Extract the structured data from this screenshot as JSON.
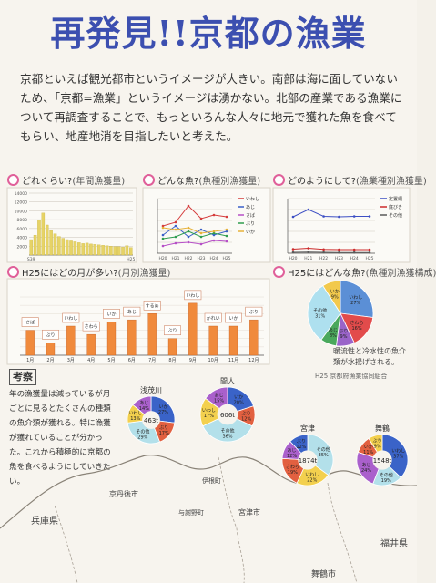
{
  "title": "再発見!!京都の漁業",
  "intro": "京都といえば観光都市というイメージが大きい。南部は海に面していないため、「京都=漁業」というイメージは湧かない。北部の産業である漁業について再調査することで、もっといろんな人々に地元で獲れた魚を食べてもらい、地産地消を目指したいと考えた。",
  "sections": {
    "s1": {
      "label": "どれくらい?",
      "paren": "(年間漁獲量)"
    },
    "s2": {
      "label": "どんな魚?",
      "paren": "(魚種別漁獲量)"
    },
    "s3": {
      "label": "どのようにして?",
      "paren": "(漁業種別漁獲量)"
    },
    "s4": {
      "label": "H25にはどの月が多い?",
      "paren": "(月別漁獲量)"
    },
    "s5": {
      "label": "H25にはどんな魚?",
      "paren": "(魚種別漁獲構成)"
    }
  },
  "chart_data": [
    {
      "type": "bar",
      "title": "どれくらい?(年間漁獲量)",
      "yticks": [
        "14000",
        "12000",
        "10000",
        "8000",
        "6000",
        "4000",
        "2000"
      ],
      "ylim": [
        0,
        14000
      ],
      "categories": [
        "S39",
        "",
        "",
        "",
        "",
        "",
        "",
        "",
        "",
        "",
        "",
        "",
        "",
        "",
        "",
        "",
        "",
        "",
        "",
        "",
        "",
        "",
        "",
        "",
        "",
        "H25"
      ],
      "values": [
        3500,
        4500,
        8000,
        9500,
        6800,
        5500,
        4800,
        4200,
        3800,
        3500,
        3200,
        3000,
        2800,
        2600,
        2700,
        2500,
        2400,
        2300,
        2200,
        2100,
        2000,
        1900,
        1900,
        1800,
        2100,
        1700
      ],
      "color": "#e6d366"
    },
    {
      "type": "line",
      "title": "どんな魚?(魚種別漁獲量)",
      "categories": [
        "H20",
        "H21",
        "H22",
        "H23",
        "H24",
        "H25"
      ],
      "legend": [
        "いわし",
        "あじ",
        "さば",
        "ぶり",
        "いか"
      ],
      "series": [
        {
          "name": "いわし",
          "color": "#d53c3c",
          "values": [
            1500,
            1700,
            2600,
            1900,
            2100,
            2000
          ]
        },
        {
          "name": "あじ",
          "color": "#3a60c8",
          "values": [
            1000,
            1500,
            900,
            1300,
            1000,
            1200
          ]
        },
        {
          "name": "さば",
          "color": "#b64fc7",
          "values": [
            400,
            550,
            600,
            500,
            700,
            650
          ]
        },
        {
          "name": "ぶり",
          "color": "#2f9c4f",
          "values": [
            800,
            900,
            1200,
            900,
            1100,
            950
          ]
        },
        {
          "name": "いか",
          "color": "#e6b23a",
          "values": [
            1400,
            1300,
            1400,
            1100,
            1200,
            1300
          ]
        }
      ],
      "ylim": [
        0,
        3000
      ]
    },
    {
      "type": "line",
      "title": "どのようにして?(漁業種別漁獲量)",
      "categories": [
        "H20",
        "H21",
        "H22",
        "H23",
        "H24",
        "H25"
      ],
      "legend": [
        "定置網",
        "底びき",
        "その他"
      ],
      "series": [
        {
          "name": "定置網",
          "color": "#3d4fc4",
          "values": [
            8000,
            9600,
            8100,
            8000,
            8100,
            8100
          ]
        },
        {
          "name": "底びき",
          "color": "#cc2b2b",
          "values": [
            900,
            1100,
            850,
            800,
            800,
            800
          ]
        },
        {
          "name": "その他",
          "color": "#5a5a5a",
          "values": [
            200,
            250,
            200,
            150,
            160,
            150
          ]
        }
      ],
      "ylim": [
        0,
        12000
      ]
    },
    {
      "type": "bar",
      "title": "H25にはどの月が多い?(月別漁獲量)",
      "categories": [
        "1月",
        "2月",
        "3月",
        "4月",
        "5月",
        "6月",
        "7月",
        "8月",
        "9月",
        "10月",
        "11月",
        "12月"
      ],
      "values": [
        600,
        300,
        700,
        500,
        800,
        850,
        1000,
        400,
        1250,
        700,
        700,
        850
      ],
      "ylim": [
        0,
        1400
      ],
      "color": "#f08a3c",
      "annotations": [
        "さば",
        "ぶり",
        "いわし",
        "さわら",
        "いか",
        "あじ",
        "するめ",
        "ぶり",
        "いわし",
        "かれい",
        "いか",
        "ぶり"
      ]
    },
    {
      "type": "pie",
      "title": "H25にはどんな魚?(魚種別漁獲構成)",
      "slices": [
        {
          "label": "いわし",
          "value": 27,
          "color": "#5b8fd6"
        },
        {
          "label": "さわら",
          "value": 16,
          "color": "#e24b4b"
        },
        {
          "label": "ぶり",
          "value": 9,
          "color": "#9a64c9"
        },
        {
          "label": "あじ",
          "value": 8,
          "color": "#4aa85c"
        },
        {
          "label": "その他",
          "value": 31,
          "color": "#aee0ef"
        },
        {
          "label": "いか",
          "value": 9,
          "color": "#f2c94c"
        }
      ],
      "note": "暖流性と冷水性の魚介類が水揚げされる。",
      "source": "H25 京都府漁業協同組合"
    }
  ],
  "kousatsu": {
    "heading": "考察",
    "body": "年の漁獲量は減っているが月ごとに見るとたくさんの種類の魚介類が獲れる。特に漁獲が獲れていることが分かった。これから積極的に京都の魚を食べるようにしていきたい。"
  },
  "map_pies": [
    {
      "name": "浅茂川",
      "center": "463t",
      "slices": [
        {
          "label": "いか",
          "value": 27,
          "color": "#3a63c8"
        },
        {
          "label": "ぶり",
          "value": 17,
          "color": "#e26040"
        },
        {
          "label": "その他",
          "value": 29,
          "color": "#b3e0ea"
        },
        {
          "label": "いわし",
          "value": 13,
          "color": "#f3d04e"
        },
        {
          "label": "あじ",
          "value": 14,
          "color": "#aa60cc"
        }
      ]
    },
    {
      "name": "間人",
      "center": "606t",
      "slices": [
        {
          "label": "いか",
          "value": 20,
          "color": "#3a63c8"
        },
        {
          "label": "ぶり",
          "value": 12,
          "color": "#e26040"
        },
        {
          "label": "その他",
          "value": 36,
          "color": "#b3e0ea"
        },
        {
          "label": "いわし",
          "value": 17,
          "color": "#f3d04e"
        },
        {
          "label": "あじ",
          "value": 15,
          "color": "#aa60cc"
        }
      ]
    },
    {
      "name": "宮津",
      "center": "1874t",
      "slices": [
        {
          "label": "その他",
          "value": 35,
          "color": "#b3e0ea"
        },
        {
          "label": "いわし",
          "value": 22,
          "color": "#f3d04e"
        },
        {
          "label": "さわら",
          "value": 19,
          "color": "#e26040"
        },
        {
          "label": "あじ",
          "value": 12,
          "color": "#aa60cc"
        },
        {
          "label": "ぶり",
          "value": 12,
          "color": "#3a63c8"
        }
      ]
    },
    {
      "name": "舞鶴",
      "center": "1548t",
      "slices": [
        {
          "label": "いわし",
          "value": 37,
          "color": "#3a63c8"
        },
        {
          "label": "その他",
          "value": 19,
          "color": "#b3e0ea"
        },
        {
          "label": "あじ",
          "value": 24,
          "color": "#aa60cc"
        },
        {
          "label": "いか",
          "value": 11,
          "color": "#e26040"
        },
        {
          "label": "ぶり",
          "value": 9,
          "color": "#f3d04e"
        }
      ]
    }
  ],
  "map_labels": [
    "兵庫県",
    "福井県",
    "舞鶴市",
    "宮津市",
    "京丹後市",
    "伊根町",
    "与謝野町"
  ]
}
